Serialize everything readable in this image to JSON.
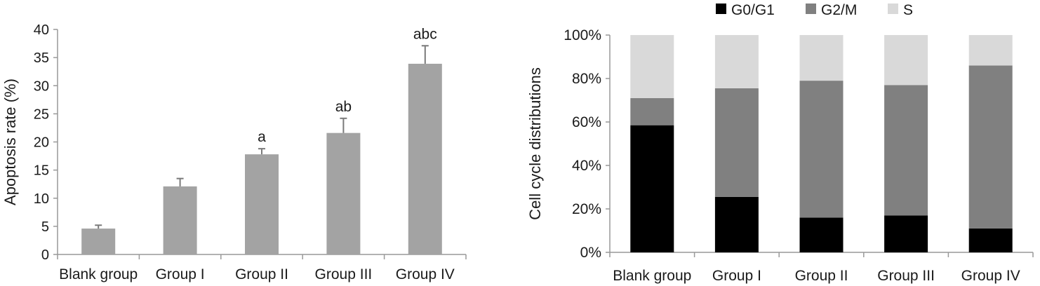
{
  "chart_data": [
    {
      "type": "bar",
      "title": "",
      "xlabel": "",
      "ylabel": "Apoptosis rate (%)",
      "categories": [
        "Blank group",
        "Group I",
        "Group II",
        "Group III",
        "Group IV"
      ],
      "values": [
        4.6,
        12.1,
        17.8,
        21.6,
        33.9
      ],
      "errors": [
        0.6,
        1.4,
        1.0,
        2.6,
        3.2
      ],
      "annotations": [
        "",
        "",
        "a",
        "ab",
        "abc"
      ],
      "ylim": [
        0,
        40
      ],
      "yticks": [
        0,
        5,
        10,
        15,
        20,
        25,
        30,
        35,
        40
      ],
      "bar_color": "#a3a3a3"
    },
    {
      "type": "bar",
      "stacked": true,
      "percent": true,
      "title": "",
      "xlabel": "",
      "ylabel": "Cell cycle distributions",
      "categories": [
        "Blank group",
        "Group I",
        "Group II",
        "Group III",
        "Group IV"
      ],
      "series": [
        {
          "name": "G0/G1",
          "color": "#000000",
          "values": [
            58.5,
            25.5,
            16,
            17,
            11
          ]
        },
        {
          "name": "G2/M",
          "color": "#808080",
          "values": [
            12.5,
            50,
            63,
            60,
            75
          ]
        },
        {
          "name": "S",
          "color": "#d9d9d9",
          "values": [
            29,
            24.5,
            21,
            23,
            14
          ]
        }
      ],
      "ylim": [
        0,
        100
      ],
      "yticks": [
        "0%",
        "20%",
        "40%",
        "60%",
        "80%",
        "100%"
      ],
      "legend_position": "top"
    }
  ]
}
